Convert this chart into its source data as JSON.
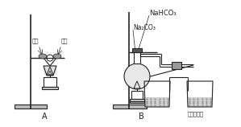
{
  "bg_color": "#ffffff",
  "label_A": "A",
  "label_B": "B",
  "label_honglin": "红磷",
  "label_bailin": "白磷",
  "label_NaHCO3": "NaHCO₃",
  "label_Na2CO3": "Na₂CO₃",
  "label_lime": "澄清石灰水",
  "line_color": "#222222",
  "gray1": "#aaaaaa",
  "gray2": "#cccccc",
  "gray3": "#888888",
  "hatch_gray": "#666666"
}
